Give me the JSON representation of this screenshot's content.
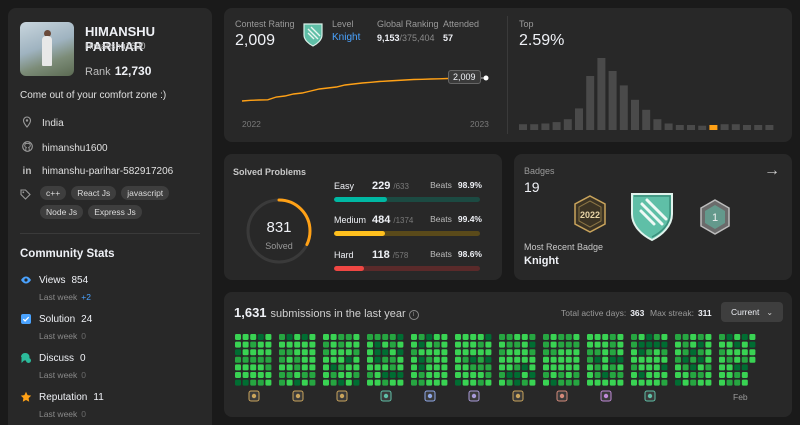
{
  "profile": {
    "name": "HIMANSHU PARIHAR",
    "username": "Himanshu1600",
    "rank_label": "Rank",
    "rank": "12,730",
    "bio": "Come out of your comfort zone :)",
    "location": "India",
    "github": "himanshu1600",
    "linkedin": "himanshu-parihar-582917206",
    "skills": [
      "c++",
      "React Js",
      "javascript",
      "Node Js",
      "Express Js"
    ]
  },
  "community": {
    "title": "Community Stats",
    "last_week_label": "Last week",
    "stats": [
      {
        "label": "Views",
        "value": "854",
        "change": "+2",
        "icon": "eye-icon",
        "color": "#4aa3ff"
      },
      {
        "label": "Solution",
        "value": "24",
        "change": "0",
        "icon": "solution-check-icon",
        "color": "#4aa3ff"
      },
      {
        "label": "Discuss",
        "value": "0",
        "change": "0",
        "icon": "discuss-bubble-icon",
        "color": "#2cbb9b"
      },
      {
        "label": "Reputation",
        "value": "11",
        "change": "0",
        "icon": "star-icon",
        "color": "#ffa116"
      }
    ]
  },
  "contest": {
    "rating_label": "Contest Rating",
    "rating": "2,009",
    "level_label": "Level",
    "level": "Knight",
    "global_label": "Global Ranking",
    "global_rank": "9,153",
    "global_total": "/375,404",
    "attended_label": "Attended",
    "attended": "57",
    "tooltip": "2,009",
    "year_start": "2022",
    "year_end": "2023",
    "top_label": "Top",
    "top_value": "2.59%",
    "ratings": [
      1560,
      1575,
      1580,
      1585,
      1640,
      1660,
      1700,
      1720,
      1760,
      1800,
      1820,
      1840,
      1880,
      1900,
      1920,
      1935,
      1950,
      1960,
      1970,
      1980,
      1990,
      1995,
      2000,
      2005,
      2009
    ],
    "histogram": [
      8,
      8,
      9,
      11,
      15,
      30,
      75,
      100,
      82,
      62,
      42,
      28,
      15,
      9,
      7,
      7,
      6,
      7,
      8,
      8,
      7,
      7,
      7
    ],
    "histogram_highlight_index": 17
  },
  "solved": {
    "title": "Solved Problems",
    "total": "831",
    "total_label": "Solved",
    "beats_label": "Beats",
    "ring_color": "#ffa116",
    "difficulties": [
      {
        "name": "Easy",
        "solved": "229",
        "total": "/633",
        "beats": "98.9%",
        "ratio": 0.362,
        "color": "#00b8a3",
        "track": "#1c4a42"
      },
      {
        "name": "Medium",
        "solved": "484",
        "total": "/1374",
        "beats": "99.4%",
        "ratio": 0.352,
        "color": "#ffc01e",
        "track": "#5a4a1a"
      },
      {
        "name": "Hard",
        "solved": "118",
        "total": "/578",
        "beats": "98.6%",
        "ratio": 0.204,
        "color": "#ef4743",
        "track": "#5a2a2a"
      }
    ]
  },
  "badges": {
    "label": "Badges",
    "count": "19",
    "recent_label": "Most Recent Badge",
    "recent": "Knight",
    "badge_year_text": "2022",
    "badge_rank_text": "1"
  },
  "submissions": {
    "count": "1,631",
    "text": "submissions in the last year",
    "active_label": "Total active days:",
    "active_days": "363",
    "streak_label": "Max streak:",
    "max_streak": "311",
    "dropdown": "Current",
    "month_label": "Feb",
    "heatmap_colors": [
      "#0e4429",
      "#006d32",
      "#26a641",
      "#39d353"
    ]
  }
}
